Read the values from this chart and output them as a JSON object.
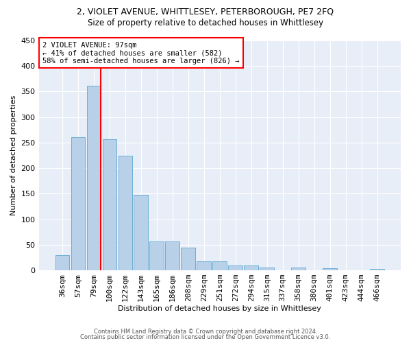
{
  "title1": "2, VIOLET AVENUE, WHITTLESEY, PETERBOROUGH, PE7 2FQ",
  "title2": "Size of property relative to detached houses in Whittlesey",
  "xlabel": "Distribution of detached houses by size in Whittlesey",
  "ylabel": "Number of detached properties",
  "categories": [
    "36sqm",
    "57sqm",
    "79sqm",
    "100sqm",
    "122sqm",
    "143sqm",
    "165sqm",
    "186sqm",
    "208sqm",
    "229sqm",
    "251sqm",
    "272sqm",
    "294sqm",
    "315sqm",
    "337sqm",
    "358sqm",
    "380sqm",
    "401sqm",
    "423sqm",
    "444sqm",
    "466sqm"
  ],
  "values": [
    30,
    261,
    362,
    257,
    225,
    148,
    57,
    57,
    45,
    18,
    18,
    10,
    10,
    6,
    0,
    5,
    0,
    4,
    0,
    0,
    3
  ],
  "bar_color": "#b8d0e8",
  "bar_edge_color": "#6baed6",
  "vline_color": "red",
  "annotation_text": "2 VIOLET AVENUE: 97sqm\n← 41% of detached houses are smaller (582)\n58% of semi-detached houses are larger (826) →",
  "annotation_box_color": "white",
  "annotation_box_edge": "red",
  "ylim": [
    0,
    450
  ],
  "yticks": [
    0,
    50,
    100,
    150,
    200,
    250,
    300,
    350,
    400,
    450
  ],
  "bg_color": "#e8eef8",
  "grid_color": "#c8d4e8",
  "footer1": "Contains HM Land Registry data © Crown copyright and database right 2024.",
  "footer2": "Contains public sector information licensed under the Open Government Licence v3.0.",
  "fig_width": 6.0,
  "fig_height": 5.0
}
